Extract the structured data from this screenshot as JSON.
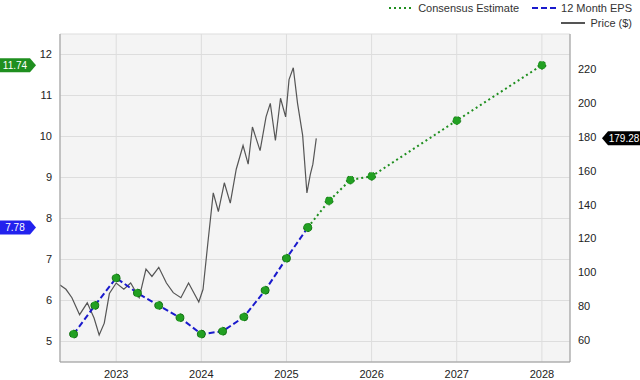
{
  "chart_data": {
    "type": "line",
    "legend": "top-right",
    "grid": true,
    "xlim": [
      2022.34,
      2028.33
    ],
    "xticks": [
      2023,
      2024,
      2025,
      2026,
      2027,
      2028
    ],
    "ylim": [
      4.5,
      12.5
    ],
    "yticks": [
      5,
      6,
      7,
      8,
      9,
      10,
      11,
      12
    ],
    "y2lim": [
      47,
      241
    ],
    "y2ticks": [
      60,
      80,
      100,
      120,
      140,
      160,
      180,
      200,
      220
    ],
    "series": [
      {
        "name": "Consensus Estimate",
        "color": "#1f8f1f",
        "line_style": "dotted",
        "marker": "circle",
        "x": [
          2025.25,
          2025.5,
          2025.75,
          2026.0,
          2027.0,
          2028.0
        ],
        "values": [
          7.78,
          8.43,
          8.94,
          9.03,
          10.39,
          11.74
        ]
      },
      {
        "name": "12 Month EPS",
        "color": "#1a1acc",
        "line_style": "dashed",
        "marker": "circle",
        "x": [
          2022.5,
          2022.75,
          2023.0,
          2023.25,
          2023.5,
          2023.75,
          2024.0,
          2024.25,
          2024.5,
          2024.75,
          2025.0,
          2025.25
        ],
        "values": [
          5.18,
          5.88,
          6.55,
          6.18,
          5.88,
          5.58,
          5.18,
          5.25,
          5.6,
          6.25,
          7.03,
          7.78
        ]
      },
      {
        "name": "Price ($)",
        "color": "#555555",
        "line_style": "solid",
        "marker": "none",
        "axis": "y2",
        "x": [
          2022.34,
          2022.41,
          2022.48,
          2022.57,
          2022.66,
          2022.74,
          2022.8,
          2022.86,
          2022.92,
          2023.0,
          2023.09,
          2023.17,
          2023.27,
          2023.35,
          2023.42,
          2023.5,
          2023.59,
          2023.67,
          2023.76,
          2023.85,
          2023.97,
          2024.02,
          2024.08,
          2024.14,
          2024.2,
          2024.27,
          2024.34,
          2024.41,
          2024.49,
          2024.55,
          2024.6,
          2024.69,
          2024.76,
          2024.81,
          2024.87,
          2024.93,
          2024.99,
          2025.03,
          2025.08,
          2025.13,
          2025.19,
          2025.24,
          2025.28,
          2025.31,
          2025.35
        ],
        "values": [
          92.6,
          90,
          85,
          75,
          82,
          73,
          63,
          70,
          87.5,
          93.7,
          90,
          93.7,
          85,
          102,
          97.6,
          103,
          93.7,
          88,
          85,
          93.7,
          82.5,
          90,
          119,
          147,
          136,
          153,
          141,
          161,
          175,
          164,
          186,
          172,
          192,
          200,
          178,
          203,
          192,
          214,
          221,
          200,
          181,
          147,
          158,
          164,
          179.28
        ]
      }
    ],
    "annotations": [
      {
        "value": 11.74,
        "axis": "y",
        "color": "#1f8f1f"
      },
      {
        "value": 7.78,
        "axis": "y",
        "color": "#2222ee"
      },
      {
        "value": 179.28,
        "axis": "y2",
        "color": "#000000"
      }
    ]
  }
}
